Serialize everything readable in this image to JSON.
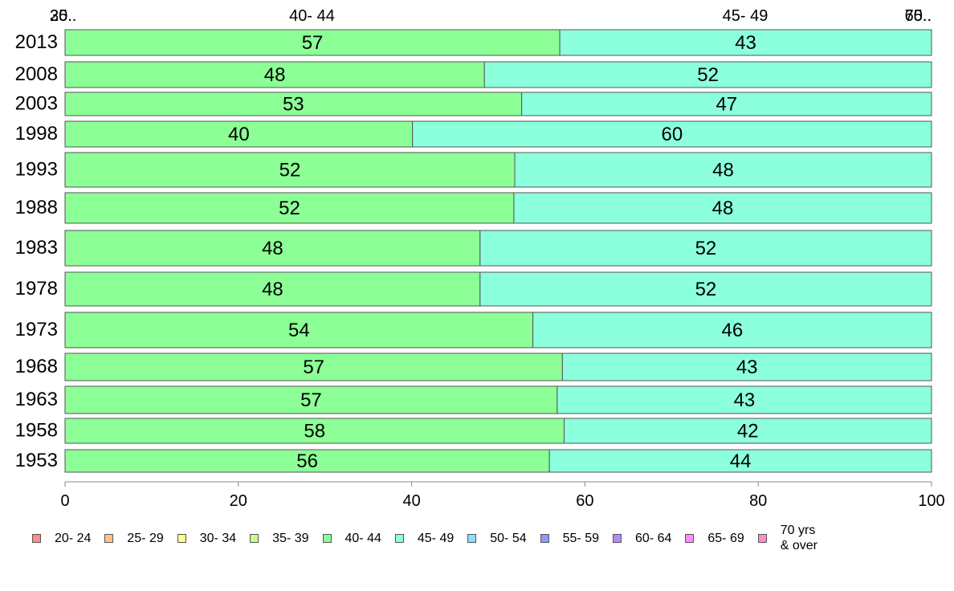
{
  "chart_data": {
    "type": "bar",
    "orientation": "horizontal",
    "stacked": true,
    "categories": [
      "2013",
      "2008",
      "2003",
      "1998",
      "1993",
      "1988",
      "1983",
      "1978",
      "1973",
      "1968",
      "1963",
      "1958",
      "1953"
    ],
    "series": [
      {
        "name": "20- 24",
        "color": "#ff8c8c",
        "values": [
          0,
          0,
          0,
          0,
          0,
          0,
          0,
          0,
          0,
          0,
          0,
          0,
          0
        ]
      },
      {
        "name": "25- 29",
        "color": "#ffc48c",
        "values": [
          0,
          0,
          0,
          0,
          0,
          0,
          0,
          0,
          0,
          0,
          0,
          0,
          0
        ]
      },
      {
        "name": "30- 34",
        "color": "#ffff8c",
        "values": [
          0,
          0,
          0,
          0,
          0,
          0,
          0,
          0,
          0,
          0,
          0,
          0,
          0
        ]
      },
      {
        "name": "35- 39",
        "color": "#c8ff8c",
        "values": [
          0,
          0,
          0,
          0,
          0,
          0,
          0,
          0,
          0,
          0,
          0,
          0,
          0
        ]
      },
      {
        "name": "40- 44",
        "color": "#8cff96",
        "values": [
          57.1,
          48.4,
          52.7,
          40.1,
          51.9,
          51.8,
          47.9,
          47.9,
          54.0,
          57.4,
          56.8,
          57.6,
          55.9
        ]
      },
      {
        "name": "45- 49",
        "color": "#8cffdc",
        "values": [
          42.9,
          51.6,
          47.3,
          59.9,
          48.1,
          48.2,
          52.1,
          52.1,
          46.0,
          42.6,
          43.2,
          42.4,
          44.1
        ]
      },
      {
        "name": "50- 54",
        "color": "#8cdcff",
        "values": [
          0,
          0,
          0,
          0,
          0,
          0,
          0,
          0,
          0,
          0,
          0,
          0,
          0
        ]
      },
      {
        "name": "55- 59",
        "color": "#8c9bff",
        "values": [
          0,
          0,
          0,
          0,
          0,
          0,
          0,
          0,
          0,
          0,
          0,
          0,
          0
        ]
      },
      {
        "name": "60- 64",
        "color": "#b48cff",
        "values": [
          0,
          0,
          0,
          0,
          0,
          0,
          0,
          0,
          0,
          0,
          0,
          0,
          0
        ]
      },
      {
        "name": "65- 69",
        "color": "#ff8cff",
        "values": [
          0,
          0,
          0,
          0,
          0,
          0,
          0,
          0,
          0,
          0,
          0,
          0,
          0
        ]
      },
      {
        "name": "70 yrs\n& over",
        "color": "#ff8cc8",
        "values": [
          0,
          0,
          0,
          0,
          0,
          0,
          0,
          0,
          0,
          0,
          0,
          0,
          0
        ]
      }
    ],
    "data_labels": [
      [
        "57",
        "43"
      ],
      [
        "48",
        "52"
      ],
      [
        "53",
        "47"
      ],
      [
        "40",
        "60"
      ],
      [
        "52",
        "48"
      ],
      [
        "52",
        "48"
      ],
      [
        "48",
        "52"
      ],
      [
        "48",
        "52"
      ],
      [
        "54",
        "46"
      ],
      [
        "57",
        "43"
      ],
      [
        "57",
        "43"
      ],
      [
        "58",
        "42"
      ],
      [
        "56",
        "44"
      ]
    ],
    "top_labels": [
      {
        "text": "20..",
        "x": 0
      },
      {
        "text": "35..",
        "x": 0
      },
      {
        "text": "40- 44",
        "x": 28.5
      },
      {
        "text": "45- 49",
        "x": 78.5
      },
      {
        "text": "65..",
        "x": 100
      },
      {
        "text": "70..",
        "x": 100
      }
    ],
    "x_ticks": [
      "0",
      "20",
      "40",
      "60",
      "80",
      "100"
    ],
    "xlim": [
      0,
      100
    ],
    "grid": false,
    "legend_position": "bottom"
  }
}
